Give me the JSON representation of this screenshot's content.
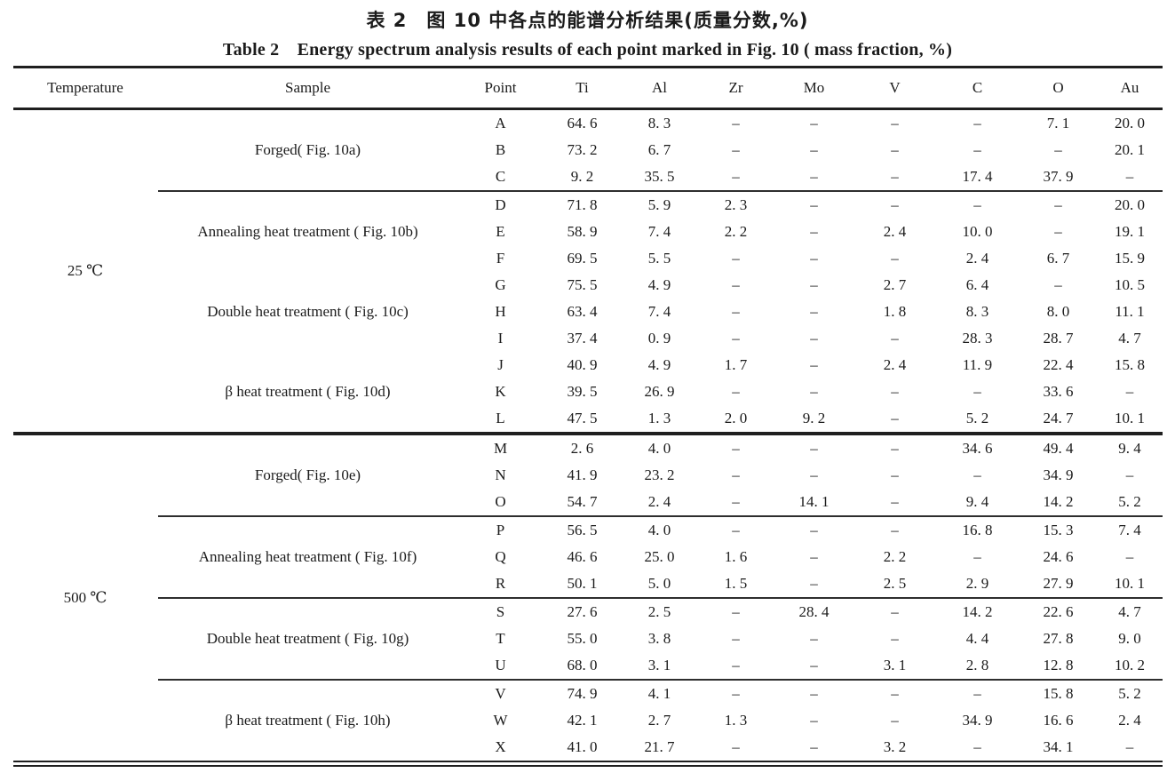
{
  "titles": {
    "zh": "表 2　图 10 中各点的能谱分析结果(质量分数,%)",
    "en": "Table 2　Energy spectrum analysis results of each point marked in Fig. 10 ( mass fraction, %)"
  },
  "table": {
    "columns": [
      "Temperature",
      "Sample",
      "Point",
      "Ti",
      "Al",
      "Zr",
      "Mo",
      "V",
      "C",
      "O",
      "Au"
    ],
    "blocks": [
      {
        "temperature": "25 ℃",
        "groups": [
          {
            "sample": "Forged( Fig. 10a)",
            "separator_above": false,
            "rows": [
              {
                "point": "A",
                "values": [
                  "64. 6",
                  "8. 3",
                  "–",
                  "–",
                  "–",
                  "–",
                  "7. 1",
                  "20. 0"
                ]
              },
              {
                "point": "B",
                "values": [
                  "73. 2",
                  "6. 7",
                  "–",
                  "–",
                  "–",
                  "–",
                  "–",
                  "20. 1"
                ]
              },
              {
                "point": "C",
                "values": [
                  "9. 2",
                  "35. 5",
                  "–",
                  "–",
                  "–",
                  "17. 4",
                  "37. 9",
                  "–"
                ]
              }
            ]
          },
          {
            "sample": "Annealing heat treatment ( Fig. 10b)",
            "separator_above": true,
            "rows": [
              {
                "point": "D",
                "values": [
                  "71. 8",
                  "5. 9",
                  "2. 3",
                  "–",
                  "–",
                  "–",
                  "–",
                  "20. 0"
                ]
              },
              {
                "point": "E",
                "values": [
                  "58. 9",
                  "7. 4",
                  "2. 2",
                  "–",
                  "2. 4",
                  "10. 0",
                  "–",
                  "19. 1"
                ]
              },
              {
                "point": "F",
                "values": [
                  "69. 5",
                  "5. 5",
                  "–",
                  "–",
                  "–",
                  "2. 4",
                  "6. 7",
                  "15. 9"
                ]
              }
            ]
          },
          {
            "sample": "Double heat treatment ( Fig. 10c)",
            "separator_above": false,
            "rows": [
              {
                "point": "G",
                "values": [
                  "75. 5",
                  "4. 9",
                  "–",
                  "–",
                  "2. 7",
                  "6. 4",
                  "–",
                  "10. 5"
                ]
              },
              {
                "point": "H",
                "values": [
                  "63. 4",
                  "7. 4",
                  "–",
                  "–",
                  "1. 8",
                  "8. 3",
                  "8. 0",
                  "11. 1"
                ]
              },
              {
                "point": "I",
                "values": [
                  "37. 4",
                  "0. 9",
                  "–",
                  "–",
                  "–",
                  "28. 3",
                  "28. 7",
                  "4. 7"
                ]
              }
            ]
          },
          {
            "sample": "β heat treatment ( Fig. 10d)",
            "separator_above": false,
            "rows": [
              {
                "point": "J",
                "values": [
                  "40. 9",
                  "4. 9",
                  "1. 7",
                  "–",
                  "2. 4",
                  "11. 9",
                  "22. 4",
                  "15. 8"
                ]
              },
              {
                "point": "K",
                "values": [
                  "39. 5",
                  "26. 9",
                  "–",
                  "–",
                  "–",
                  "–",
                  "33. 6",
                  "–"
                ]
              },
              {
                "point": "L",
                "values": [
                  "47. 5",
                  "1. 3",
                  "2. 0",
                  "9. 2",
                  "–",
                  "5. 2",
                  "24. 7",
                  "10. 1"
                ]
              }
            ]
          }
        ]
      },
      {
        "temperature": "500 ℃",
        "groups": [
          {
            "sample": "Forged( Fig. 10e)",
            "separator_above": false,
            "rows": [
              {
                "point": "M",
                "values": [
                  "2. 6",
                  "4. 0",
                  "–",
                  "–",
                  "–",
                  "34. 6",
                  "49. 4",
                  "9. 4"
                ]
              },
              {
                "point": "N",
                "values": [
                  "41. 9",
                  "23. 2",
                  "–",
                  "–",
                  "–",
                  "–",
                  "34. 9",
                  "–"
                ]
              },
              {
                "point": "O",
                "values": [
                  "54. 7",
                  "2. 4",
                  "–",
                  "14. 1",
                  "–",
                  "9. 4",
                  "14. 2",
                  "5. 2"
                ]
              }
            ]
          },
          {
            "sample": "Annealing heat treatment ( Fig. 10f)",
            "separator_above": true,
            "rows": [
              {
                "point": "P",
                "values": [
                  "56. 5",
                  "4. 0",
                  "–",
                  "–",
                  "–",
                  "16. 8",
                  "15. 3",
                  "7. 4"
                ]
              },
              {
                "point": "Q",
                "values": [
                  "46. 6",
                  "25. 0",
                  "1. 6",
                  "–",
                  "2. 2",
                  "–",
                  "24. 6",
                  "–"
                ]
              },
              {
                "point": "R",
                "values": [
                  "50. 1",
                  "5. 0",
                  "1. 5",
                  "–",
                  "2. 5",
                  "2. 9",
                  "27. 9",
                  "10. 1"
                ]
              }
            ]
          },
          {
            "sample": "Double heat treatment ( Fig. 10g)",
            "separator_above": true,
            "rows": [
              {
                "point": "S",
                "values": [
                  "27. 6",
                  "2. 5",
                  "–",
                  "28. 4",
                  "–",
                  "14. 2",
                  "22. 6",
                  "4. 7"
                ]
              },
              {
                "point": "T",
                "values": [
                  "55. 0",
                  "3. 8",
                  "–",
                  "–",
                  "–",
                  "4. 4",
                  "27. 8",
                  "9. 0"
                ]
              },
              {
                "point": "U",
                "values": [
                  "68. 0",
                  "3. 1",
                  "–",
                  "–",
                  "3. 1",
                  "2. 8",
                  "12. 8",
                  "10. 2"
                ]
              }
            ]
          },
          {
            "sample": "β heat treatment ( Fig. 10h)",
            "separator_above": true,
            "rows": [
              {
                "point": "V",
                "values": [
                  "74. 9",
                  "4. 1",
                  "–",
                  "–",
                  "–",
                  "–",
                  "15. 8",
                  "5. 2"
                ]
              },
              {
                "point": "W",
                "values": [
                  "42. 1",
                  "2. 7",
                  "1. 3",
                  "–",
                  "–",
                  "34. 9",
                  "16. 6",
                  "2. 4"
                ]
              },
              {
                "point": "X",
                "values": [
                  "41. 0",
                  "21. 7",
                  "–",
                  "–",
                  "3. 2",
                  "–",
                  "34. 1",
                  "–"
                ]
              }
            ]
          }
        ]
      }
    ]
  }
}
